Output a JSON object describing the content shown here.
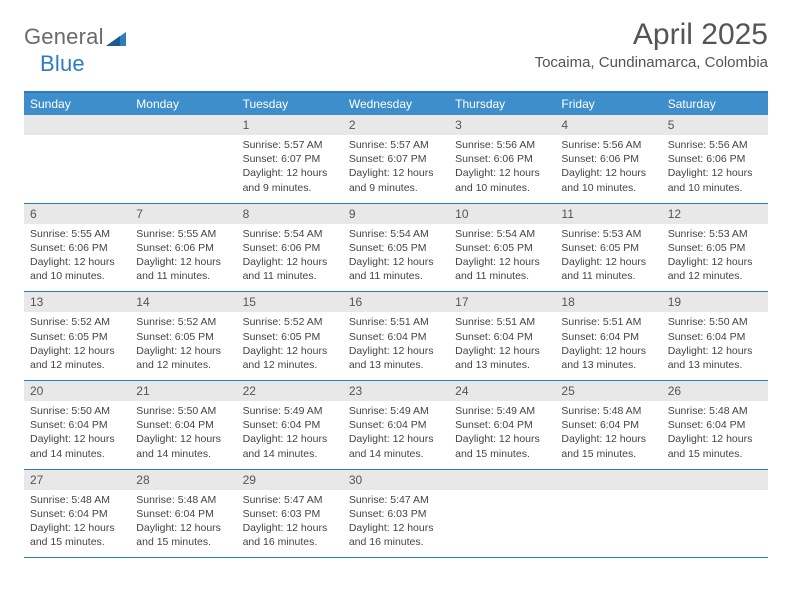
{
  "logo": {
    "text1": "General",
    "text2": "Blue"
  },
  "title": "April 2025",
  "location": "Tocaima, Cundinamarca, Colombia",
  "colors": {
    "header_bg": "#3f8ecc",
    "header_border": "#2f7bbf",
    "daynum_bg": "#e8e8e8",
    "text": "#444444",
    "logo_gray": "#6a6a6a",
    "logo_blue": "#2f7bbf"
  },
  "day_headers": [
    "Sunday",
    "Monday",
    "Tuesday",
    "Wednesday",
    "Thursday",
    "Friday",
    "Saturday"
  ],
  "weeks": [
    {
      "nums": [
        "",
        "",
        "1",
        "2",
        "3",
        "4",
        "5"
      ],
      "cells": [
        "",
        "",
        "Sunrise: 5:57 AM\nSunset: 6:07 PM\nDaylight: 12 hours and 9 minutes.",
        "Sunrise: 5:57 AM\nSunset: 6:07 PM\nDaylight: 12 hours and 9 minutes.",
        "Sunrise: 5:56 AM\nSunset: 6:06 PM\nDaylight: 12 hours and 10 minutes.",
        "Sunrise: 5:56 AM\nSunset: 6:06 PM\nDaylight: 12 hours and 10 minutes.",
        "Sunrise: 5:56 AM\nSunset: 6:06 PM\nDaylight: 12 hours and 10 minutes."
      ]
    },
    {
      "nums": [
        "6",
        "7",
        "8",
        "9",
        "10",
        "11",
        "12"
      ],
      "cells": [
        "Sunrise: 5:55 AM\nSunset: 6:06 PM\nDaylight: 12 hours and 10 minutes.",
        "Sunrise: 5:55 AM\nSunset: 6:06 PM\nDaylight: 12 hours and 11 minutes.",
        "Sunrise: 5:54 AM\nSunset: 6:06 PM\nDaylight: 12 hours and 11 minutes.",
        "Sunrise: 5:54 AM\nSunset: 6:05 PM\nDaylight: 12 hours and 11 minutes.",
        "Sunrise: 5:54 AM\nSunset: 6:05 PM\nDaylight: 12 hours and 11 minutes.",
        "Sunrise: 5:53 AM\nSunset: 6:05 PM\nDaylight: 12 hours and 11 minutes.",
        "Sunrise: 5:53 AM\nSunset: 6:05 PM\nDaylight: 12 hours and 12 minutes."
      ]
    },
    {
      "nums": [
        "13",
        "14",
        "15",
        "16",
        "17",
        "18",
        "19"
      ],
      "cells": [
        "Sunrise: 5:52 AM\nSunset: 6:05 PM\nDaylight: 12 hours and 12 minutes.",
        "Sunrise: 5:52 AM\nSunset: 6:05 PM\nDaylight: 12 hours and 12 minutes.",
        "Sunrise: 5:52 AM\nSunset: 6:05 PM\nDaylight: 12 hours and 12 minutes.",
        "Sunrise: 5:51 AM\nSunset: 6:04 PM\nDaylight: 12 hours and 13 minutes.",
        "Sunrise: 5:51 AM\nSunset: 6:04 PM\nDaylight: 12 hours and 13 minutes.",
        "Sunrise: 5:51 AM\nSunset: 6:04 PM\nDaylight: 12 hours and 13 minutes.",
        "Sunrise: 5:50 AM\nSunset: 6:04 PM\nDaylight: 12 hours and 13 minutes."
      ]
    },
    {
      "nums": [
        "20",
        "21",
        "22",
        "23",
        "24",
        "25",
        "26"
      ],
      "cells": [
        "Sunrise: 5:50 AM\nSunset: 6:04 PM\nDaylight: 12 hours and 14 minutes.",
        "Sunrise: 5:50 AM\nSunset: 6:04 PM\nDaylight: 12 hours and 14 minutes.",
        "Sunrise: 5:49 AM\nSunset: 6:04 PM\nDaylight: 12 hours and 14 minutes.",
        "Sunrise: 5:49 AM\nSunset: 6:04 PM\nDaylight: 12 hours and 14 minutes.",
        "Sunrise: 5:49 AM\nSunset: 6:04 PM\nDaylight: 12 hours and 15 minutes.",
        "Sunrise: 5:48 AM\nSunset: 6:04 PM\nDaylight: 12 hours and 15 minutes.",
        "Sunrise: 5:48 AM\nSunset: 6:04 PM\nDaylight: 12 hours and 15 minutes."
      ]
    },
    {
      "nums": [
        "27",
        "28",
        "29",
        "30",
        "",
        "",
        ""
      ],
      "cells": [
        "Sunrise: 5:48 AM\nSunset: 6:04 PM\nDaylight: 12 hours and 15 minutes.",
        "Sunrise: 5:48 AM\nSunset: 6:04 PM\nDaylight: 12 hours and 15 minutes.",
        "Sunrise: 5:47 AM\nSunset: 6:03 PM\nDaylight: 12 hours and 16 minutes.",
        "Sunrise: 5:47 AM\nSunset: 6:03 PM\nDaylight: 12 hours and 16 minutes.",
        "",
        "",
        ""
      ]
    }
  ]
}
